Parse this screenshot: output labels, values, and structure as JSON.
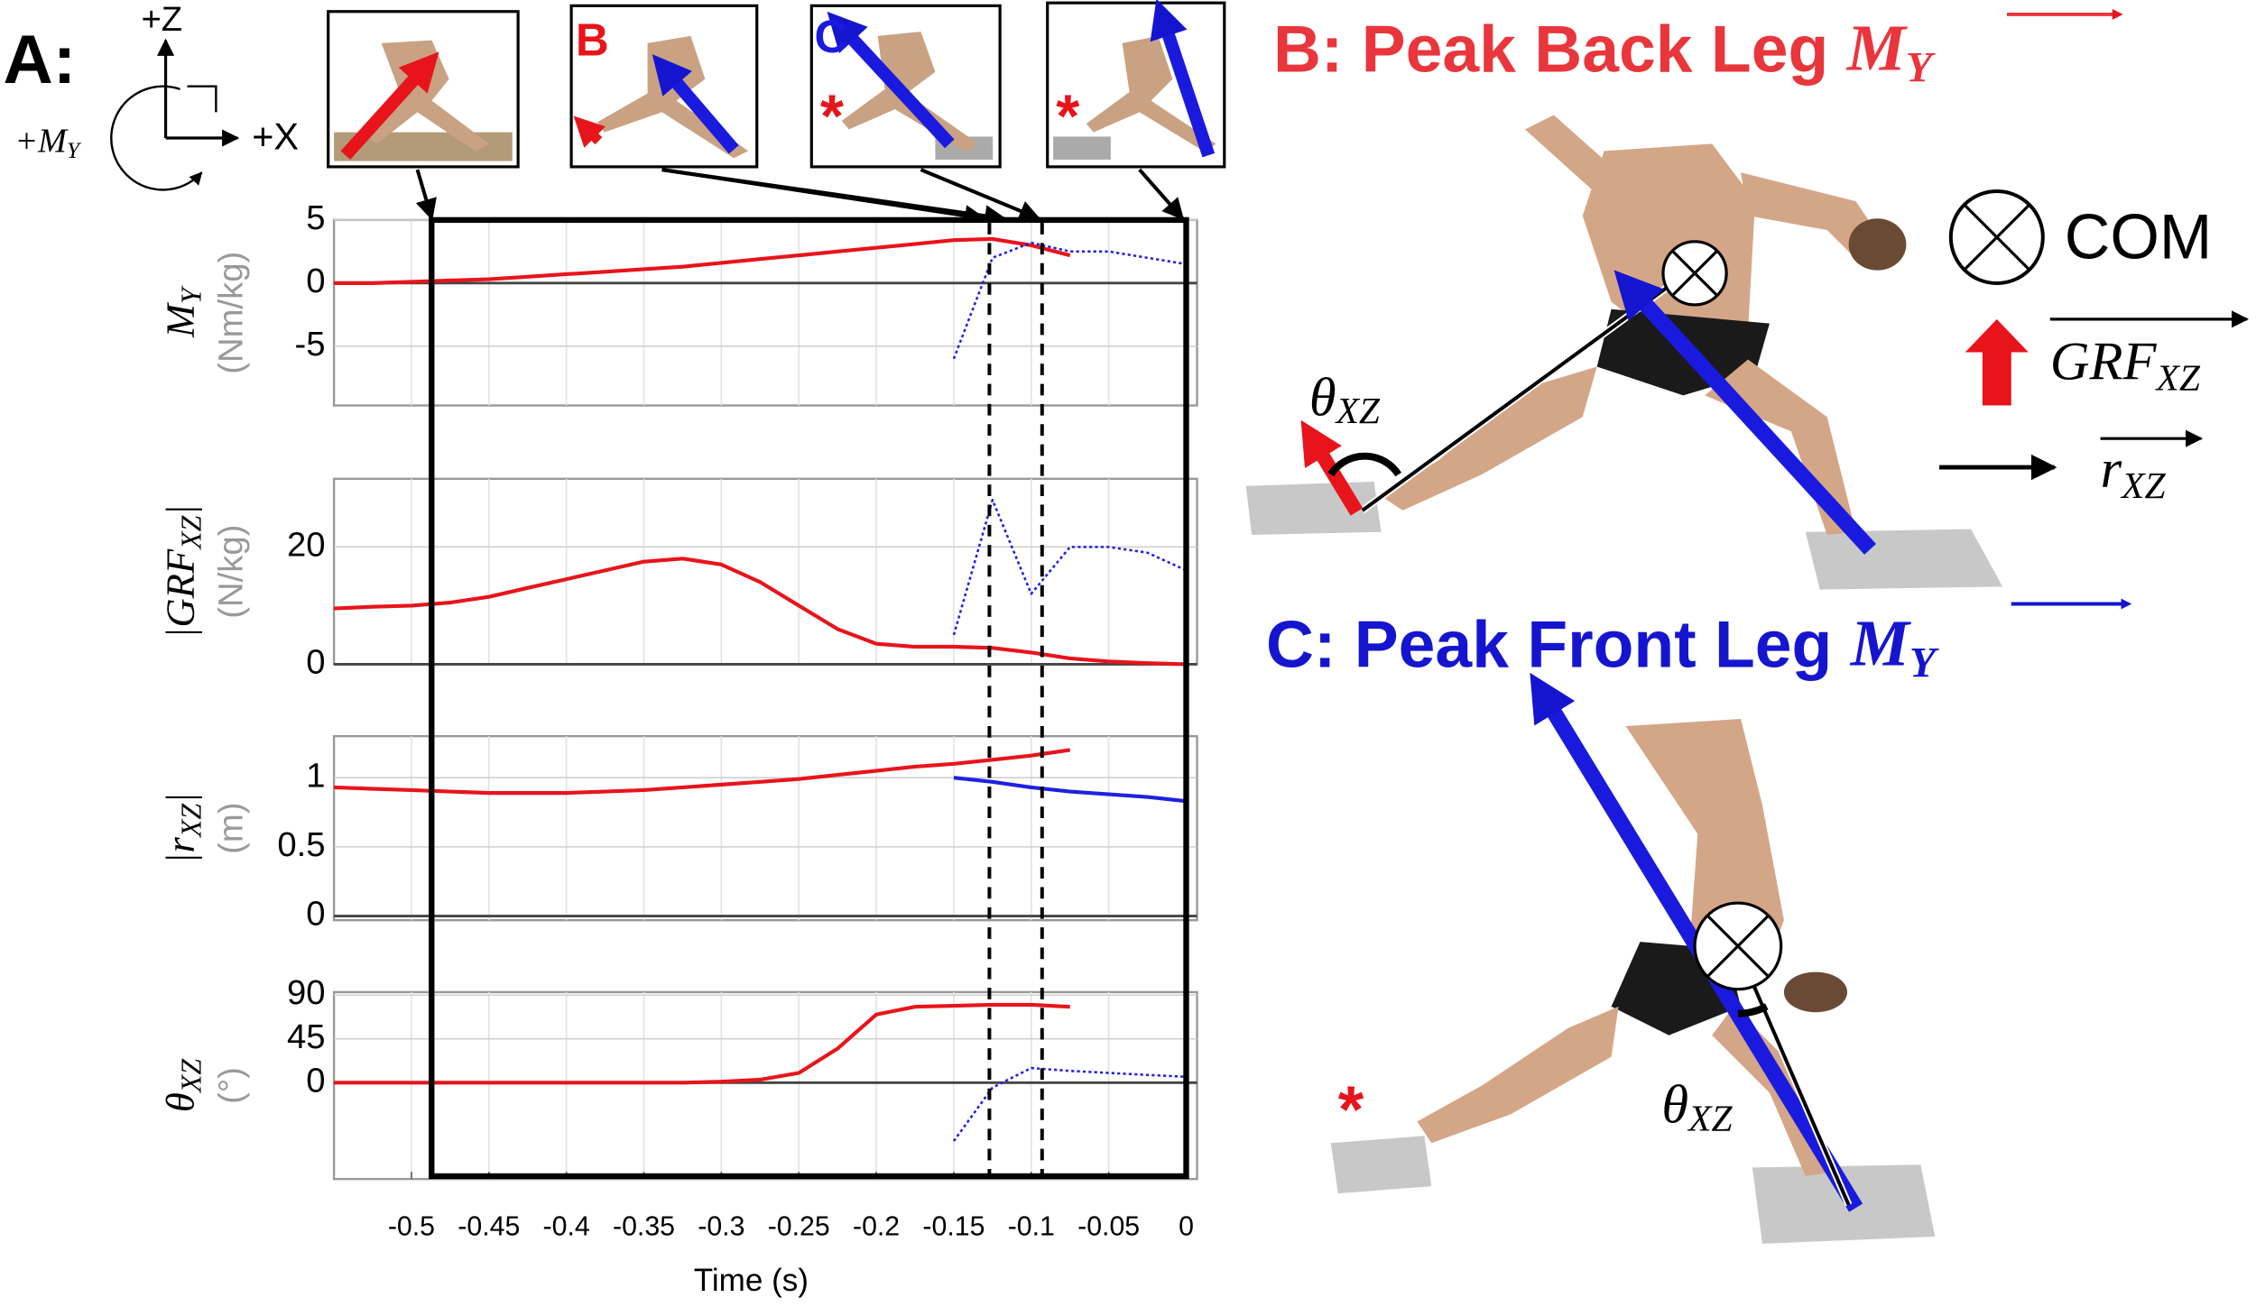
{
  "figure": {
    "panel_a_label": "A:",
    "axis_z": "+Z",
    "axis_x": "+X",
    "moment": "+M",
    "moment_sub": "Y",
    "thumb_b": "B",
    "thumb_c": "C",
    "star": "*",
    "title_b": "B: Peak Back Leg ",
    "title_b_sym": "M",
    "title_b_sub": "Y",
    "title_c": "C: Peak Front Leg ",
    "title_c_sym": "M",
    "title_c_sub": "Y",
    "com": "COM",
    "grf": "GRF",
    "grf_sub": "XZ",
    "r": "r",
    "r_sub": "XZ",
    "angle": "θ",
    "angle_sub": "XZ",
    "event_times": [
      -0.127,
      -0.093
    ],
    "window": [
      -0.487,
      0
    ]
  },
  "chart_data": [
    {
      "type": "line",
      "ylabel": {
        "text": "M",
        "sub": "Y"
      },
      "yunit": "(Nm/kg)",
      "x": [
        -0.55,
        -0.525,
        -0.5,
        -0.475,
        -0.45,
        -0.425,
        -0.4,
        -0.375,
        -0.35,
        -0.325,
        -0.3,
        -0.275,
        -0.25,
        -0.225,
        -0.2,
        -0.175,
        -0.15,
        -0.125,
        -0.1,
        -0.075,
        -0.05,
        -0.025,
        0
      ],
      "xlim": [
        -0.55,
        0.007
      ],
      "xticks": [
        -0.5,
        -0.45,
        -0.4,
        -0.35,
        -0.3,
        -0.25,
        -0.2,
        -0.15,
        -0.1,
        -0.05,
        0
      ],
      "ylim": [
        -9.7,
        5
      ],
      "yticks": [
        -5,
        0,
        5
      ],
      "grid": true,
      "series": [
        {
          "color": "#e8141b",
          "style": "solid",
          "values": [
            0,
            0,
            0.1,
            0.2,
            0.3,
            0.5,
            0.7,
            0.9,
            1.1,
            1.3,
            1.6,
            1.9,
            2.2,
            2.5,
            2.8,
            3.1,
            3.4,
            3.5,
            3,
            2.2,
            null,
            null,
            null
          ]
        },
        {
          "color": "#2020e0",
          "style": "dotted",
          "values": [
            null,
            null,
            null,
            null,
            null,
            null,
            null,
            null,
            null,
            null,
            null,
            null,
            null,
            null,
            null,
            null,
            -6,
            2,
            3.2,
            2.5,
            2.5,
            2,
            1.5
          ]
        }
      ]
    },
    {
      "type": "line",
      "ylabel": {
        "text": "|GRF",
        "sub": "XZ",
        "end": "|"
      },
      "yunit": "(N/kg)",
      "x": [
        -0.55,
        -0.525,
        -0.5,
        -0.475,
        -0.45,
        -0.425,
        -0.4,
        -0.375,
        -0.35,
        -0.325,
        -0.3,
        -0.275,
        -0.25,
        -0.225,
        -0.2,
        -0.175,
        -0.15,
        -0.125,
        -0.1,
        -0.075,
        -0.05,
        -0.025,
        0
      ],
      "xlim": [
        -0.55,
        0.007
      ],
      "xticks": [
        -0.5,
        -0.45,
        -0.4,
        -0.35,
        -0.3,
        -0.25,
        -0.2,
        -0.15,
        -0.1,
        -0.05,
        0
      ],
      "ylim": [
        0,
        31.6
      ],
      "yticks": [
        0,
        20
      ],
      "grid": true,
      "series": [
        {
          "color": "#e8141b",
          "style": "solid",
          "values": [
            9.5,
            9.8,
            10,
            10.5,
            11.5,
            13,
            14.5,
            16,
            17.5,
            18,
            17,
            14,
            10,
            6,
            3.5,
            3,
            3,
            2.8,
            2,
            1,
            0.5,
            0.2,
            0
          ]
        },
        {
          "color": "#2020e0",
          "style": "dotted",
          "values": [
            null,
            null,
            null,
            null,
            null,
            null,
            null,
            null,
            null,
            null,
            null,
            null,
            null,
            null,
            null,
            null,
            5,
            28,
            12,
            20,
            20,
            19,
            16
          ]
        }
      ]
    },
    {
      "type": "line",
      "ylabel": {
        "text": "|r",
        "sub": "XZ",
        "end": "|"
      },
      "yunit": "(m)",
      "x": [
        -0.55,
        -0.525,
        -0.5,
        -0.475,
        -0.45,
        -0.425,
        -0.4,
        -0.375,
        -0.35,
        -0.325,
        -0.3,
        -0.275,
        -0.25,
        -0.225,
        -0.2,
        -0.175,
        -0.15,
        -0.125,
        -0.1,
        -0.075,
        -0.05,
        -0.025,
        0
      ],
      "xlim": [
        -0.55,
        0.007
      ],
      "xticks": [
        -0.5,
        -0.45,
        -0.4,
        -0.35,
        -0.3,
        -0.25,
        -0.2,
        -0.15,
        -0.1,
        -0.05,
        0
      ],
      "ylim": [
        -0.03,
        1.3
      ],
      "yticks": [
        0,
        0.5,
        1
      ],
      "grid": true,
      "series": [
        {
          "color": "#e8141b",
          "style": "solid",
          "values": [
            0.93,
            0.92,
            0.91,
            0.9,
            0.89,
            0.89,
            0.89,
            0.9,
            0.91,
            0.93,
            0.95,
            0.97,
            0.99,
            1.02,
            1.05,
            1.08,
            1.1,
            1.13,
            1.16,
            1.2,
            null,
            null,
            null
          ]
        },
        {
          "color": "#2020e0",
          "style": "solid",
          "values": [
            null,
            null,
            null,
            null,
            null,
            null,
            null,
            null,
            null,
            null,
            null,
            null,
            null,
            null,
            null,
            null,
            1.0,
            0.97,
            0.93,
            0.9,
            0.88,
            0.86,
            0.83
          ]
        }
      ]
    },
    {
      "type": "line",
      "ylabel": {
        "text": "θ",
        "sub": "XZ"
      },
      "yunit": "(°)",
      "xlabel": "Time (s)",
      "x": [
        -0.55,
        -0.525,
        -0.5,
        -0.475,
        -0.45,
        -0.425,
        -0.4,
        -0.375,
        -0.35,
        -0.325,
        -0.3,
        -0.275,
        -0.25,
        -0.225,
        -0.2,
        -0.175,
        -0.15,
        -0.125,
        -0.1,
        -0.075,
        -0.05,
        -0.025,
        0
      ],
      "xlim": [
        -0.55,
        0.007
      ],
      "xticks": [
        -0.5,
        -0.45,
        -0.4,
        -0.35,
        -0.3,
        -0.25,
        -0.2,
        -0.15,
        -0.1,
        -0.05,
        0
      ],
      "ylim": [
        -99,
        93
      ],
      "yticks": [
        0,
        45,
        90
      ],
      "grid": true,
      "series": [
        {
          "color": "#e8141b",
          "style": "solid",
          "values": [
            0,
            0,
            0,
            0,
            0,
            0,
            0,
            0,
            0,
            0,
            1,
            3,
            10,
            35,
            70,
            78,
            79,
            80,
            80,
            78,
            null,
            null,
            null
          ]
        },
        {
          "color": "#2020e0",
          "style": "dotted",
          "values": [
            null,
            null,
            null,
            null,
            null,
            null,
            null,
            null,
            null,
            null,
            null,
            null,
            null,
            null,
            null,
            null,
            -60,
            -5,
            15,
            12,
            10,
            8,
            6
          ]
        }
      ]
    }
  ]
}
